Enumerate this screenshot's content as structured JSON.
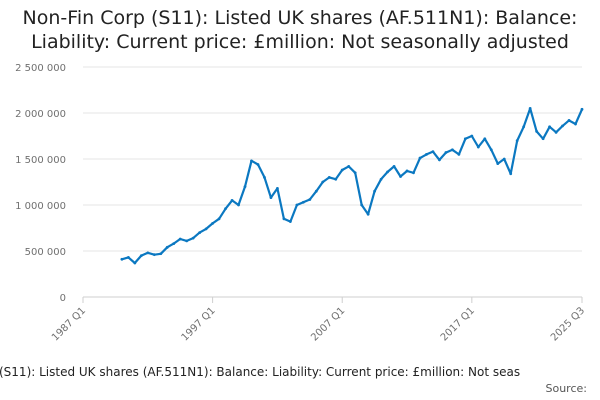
{
  "chart_data": {
    "type": "line",
    "title_lines": [
      "Non-Fin Corp (S11): Listed UK shares (AF.511N1): Balance:",
      "Liability: Current price: £million: Not seasonally adjusted"
    ],
    "series_name": "(S11): Listed UK shares (AF.511N1): Balance: Liability: Current price: £million: Not seas",
    "source_label": "Source:",
    "ylim": [
      0,
      2500000
    ],
    "y_ticks": [
      0,
      500000,
      1000000,
      1500000,
      2000000,
      2500000
    ],
    "y_tick_labels": [
      "0",
      "500 000",
      "1 000 000",
      "1 500 000",
      "2 000 000",
      "2 500 000"
    ],
    "xlim": [
      1987.0,
      2025.5
    ],
    "x_ticks": [
      1987.0,
      1997.0,
      2007.0,
      2017.0,
      2025.5
    ],
    "x_tick_labels": [
      "1987 Q1",
      "1997 Q1",
      "2007 Q1",
      "2017 Q1",
      "2025 Q3"
    ],
    "series_color": "#0b78c1",
    "x": [
      1990.0,
      1990.5,
      1991.0,
      1991.5,
      1992.0,
      1992.5,
      1993.0,
      1993.5,
      1994.0,
      1994.5,
      1995.0,
      1995.5,
      1996.0,
      1996.5,
      1997.0,
      1997.5,
      1998.0,
      1998.5,
      1999.0,
      1999.5,
      2000.0,
      2000.5,
      2001.0,
      2001.5,
      2002.0,
      2002.5,
      2003.0,
      2003.5,
      2004.0,
      2004.5,
      2005.0,
      2005.5,
      2006.0,
      2006.5,
      2007.0,
      2007.5,
      2008.0,
      2008.5,
      2009.0,
      2009.5,
      2010.0,
      2010.5,
      2011.0,
      2011.5,
      2012.0,
      2012.5,
      2013.0,
      2013.5,
      2014.0,
      2014.5,
      2015.0,
      2015.5,
      2016.0,
      2016.5,
      2017.0,
      2017.5,
      2018.0,
      2018.5,
      2019.0,
      2019.5,
      2020.0,
      2020.5,
      2021.0,
      2021.5,
      2022.0,
      2022.5,
      2023.0,
      2023.5,
      2024.0,
      2024.5,
      2025.0,
      2025.5
    ],
    "values": [
      410000,
      430000,
      370000,
      450000,
      480000,
      460000,
      470000,
      540000,
      580000,
      630000,
      610000,
      640000,
      700000,
      740000,
      800000,
      850000,
      960000,
      1050000,
      1000000,
      1200000,
      1480000,
      1440000,
      1300000,
      1080000,
      1180000,
      850000,
      820000,
      1000000,
      1030000,
      1060000,
      1150000,
      1250000,
      1300000,
      1280000,
      1380000,
      1420000,
      1350000,
      1000000,
      900000,
      1150000,
      1280000,
      1360000,
      1420000,
      1310000,
      1370000,
      1350000,
      1510000,
      1550000,
      1580000,
      1490000,
      1570000,
      1600000,
      1550000,
      1720000,
      1750000,
      1630000,
      1720000,
      1600000,
      1450000,
      1500000,
      1340000,
      1700000,
      1850000,
      2050000,
      1800000,
      1720000,
      1850000,
      1790000,
      1860000,
      1920000,
      1880000,
      2040000
    ]
  }
}
